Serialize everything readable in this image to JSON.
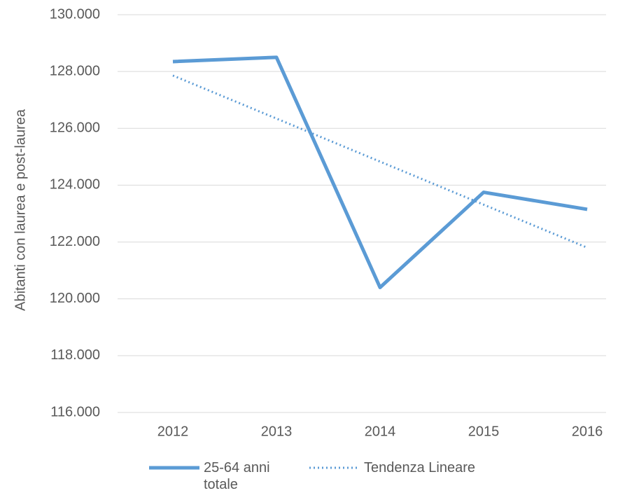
{
  "chart_data": {
    "type": "line",
    "y_label": "Abitanti con laurea e post-laurea",
    "categories": [
      "2012",
      "2013",
      "2014",
      "2015",
      "2016"
    ],
    "series": [
      {
        "name": "25-64 anni totale",
        "color": "#5b9bd5",
        "values": [
          128350,
          128500,
          120400,
          123750,
          123150
        ]
      },
      {
        "name": "Tendenza Lineare",
        "color": "#5b9bd5",
        "dashed": true,
        "values": [
          127860,
          126345,
          124830,
          123315,
          121800
        ]
      }
    ],
    "ylim": [
      116000,
      130000
    ],
    "yticks": [
      {
        "value": 116000,
        "label": "116.000"
      },
      {
        "value": 118000,
        "label": "118.000"
      },
      {
        "value": 120000,
        "label": "120.000"
      },
      {
        "value": 122000,
        "label": "122.000"
      },
      {
        "value": 124000,
        "label": "124.000"
      },
      {
        "value": 126000,
        "label": "126.000"
      },
      {
        "value": 128000,
        "label": "128.000"
      },
      {
        "value": 130000,
        "label": "130.000"
      }
    ],
    "grid": true,
    "legend": "bottom"
  }
}
